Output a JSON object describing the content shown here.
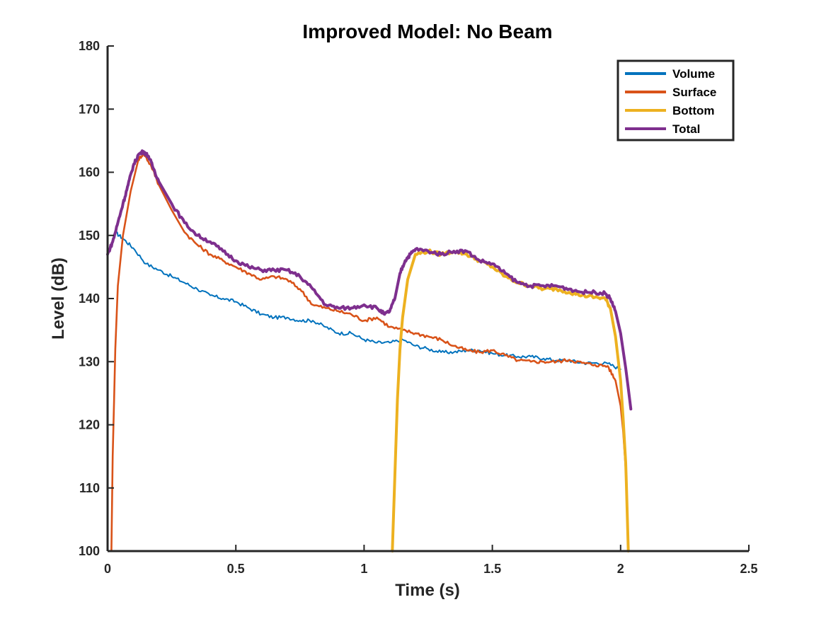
{
  "chart_data": {
    "type": "line",
    "title": "Improved Model: No Beam",
    "xlabel": "Time (s)",
    "ylabel": "Level (dB)",
    "xlim": [
      0,
      2.5
    ],
    "ylim": [
      100,
      180
    ],
    "xticks": [
      0,
      0.5,
      1,
      1.5,
      2,
      2.5
    ],
    "xtick_labels": [
      "0",
      "0.5",
      "1",
      "1.5",
      "2",
      "2.5"
    ],
    "yticks": [
      100,
      110,
      120,
      130,
      140,
      150,
      160,
      170,
      180
    ],
    "ytick_labels": [
      "100",
      "110",
      "120",
      "130",
      "140",
      "150",
      "160",
      "170",
      "180"
    ],
    "grid": false,
    "legend_position": "top-right",
    "series": [
      {
        "name": "Volume",
        "color": "#0072BD",
        "x": [
          0.03,
          0.06,
          0.1,
          0.15,
          0.2,
          0.25,
          0.3,
          0.35,
          0.4,
          0.45,
          0.5,
          0.55,
          0.6,
          0.65,
          0.7,
          0.75,
          0.8,
          0.85,
          0.9,
          0.95,
          1.0,
          1.05,
          1.1,
          1.15,
          1.2,
          1.25,
          1.3,
          1.35,
          1.4,
          1.45,
          1.5,
          1.55,
          1.6,
          1.65,
          1.7,
          1.75,
          1.8,
          1.85,
          1.9,
          1.95,
          2.0
        ],
        "y": [
          150.5,
          149.5,
          148,
          145.5,
          144.5,
          143.5,
          142.5,
          141.5,
          140.5,
          140,
          139.5,
          138.5,
          137.5,
          137,
          137,
          136.5,
          136.5,
          135.5,
          134.5,
          134.5,
          133.5,
          133,
          133,
          133.5,
          132.5,
          132,
          131.5,
          131.5,
          131.8,
          131.8,
          131.3,
          131,
          130.8,
          130.8,
          130.5,
          130.2,
          130.2,
          129.8,
          129.8,
          129.7,
          128.8
        ]
      },
      {
        "name": "Surface",
        "color": "#D95319",
        "x": [
          0.015,
          0.02,
          0.03,
          0.04,
          0.06,
          0.09,
          0.12,
          0.14,
          0.17,
          0.2,
          0.25,
          0.3,
          0.35,
          0.4,
          0.45,
          0.5,
          0.55,
          0.6,
          0.65,
          0.7,
          0.75,
          0.8,
          0.85,
          0.9,
          0.95,
          1.0,
          1.05,
          1.1,
          1.15,
          1.2,
          1.25,
          1.3,
          1.35,
          1.4,
          1.45,
          1.5,
          1.55,
          1.6,
          1.65,
          1.7,
          1.75,
          1.8,
          1.85,
          1.9,
          1.95,
          1.98,
          2.0,
          2.01,
          2.02,
          2.03
        ],
        "y": [
          100,
          115,
          132,
          142,
          150,
          157,
          162,
          163,
          161,
          158,
          154,
          150.5,
          148.5,
          147,
          146,
          145,
          144,
          143,
          143.5,
          143,
          141.5,
          139,
          138.5,
          138,
          137.5,
          136.5,
          137,
          135.5,
          135,
          134.5,
          134,
          133.5,
          132.5,
          131.8,
          131.5,
          131.8,
          131,
          130.2,
          130,
          130,
          130,
          130.3,
          129.8,
          129.5,
          129.3,
          127,
          123,
          119,
          113,
          100
        ]
      },
      {
        "name": "Bottom",
        "color": "#EDB120",
        "x": [
          1.11,
          1.12,
          1.13,
          1.14,
          1.15,
          1.17,
          1.2,
          1.25,
          1.3,
          1.35,
          1.4,
          1.45,
          1.5,
          1.55,
          1.6,
          1.65,
          1.7,
          1.75,
          1.8,
          1.85,
          1.9,
          1.94,
          1.96,
          1.98,
          2.0,
          2.01,
          2.02,
          2.025,
          2.03
        ],
        "y": [
          100,
          112,
          124,
          132,
          137,
          143,
          147,
          147.5,
          147,
          147.5,
          147,
          146,
          145,
          143.5,
          142.5,
          142,
          141.5,
          141.5,
          141,
          140.5,
          140.2,
          140,
          138.5,
          134,
          127,
          121,
          114,
          107,
          100
        ]
      },
      {
        "name": "Total",
        "color": "#7E2F8E",
        "x": [
          0,
          0.02,
          0.04,
          0.06,
          0.08,
          0.1,
          0.12,
          0.14,
          0.16,
          0.18,
          0.2,
          0.25,
          0.3,
          0.35,
          0.4,
          0.45,
          0.5,
          0.55,
          0.6,
          0.65,
          0.7,
          0.75,
          0.8,
          0.85,
          0.9,
          0.95,
          1.0,
          1.05,
          1.08,
          1.1,
          1.12,
          1.14,
          1.16,
          1.18,
          1.2,
          1.25,
          1.3,
          1.35,
          1.4,
          1.45,
          1.5,
          1.55,
          1.6,
          1.65,
          1.7,
          1.75,
          1.8,
          1.85,
          1.9,
          1.94,
          1.96,
          1.98,
          2.0,
          2.02,
          2.04
        ],
        "y": [
          147,
          149,
          152,
          155,
          158,
          161,
          162.8,
          163.3,
          162.5,
          160.5,
          158.5,
          155,
          152,
          150,
          149,
          147.5,
          146,
          145,
          144.5,
          144.5,
          144.5,
          143.5,
          141.5,
          139,
          138.5,
          138.5,
          139,
          138.5,
          137.5,
          138,
          140,
          144,
          146,
          147,
          147.8,
          147.5,
          147,
          147.5,
          147.5,
          146,
          145.5,
          144,
          142.5,
          142,
          142,
          142,
          141.5,
          141,
          141,
          140.8,
          140,
          138,
          134.5,
          129,
          122.5
        ]
      }
    ]
  }
}
